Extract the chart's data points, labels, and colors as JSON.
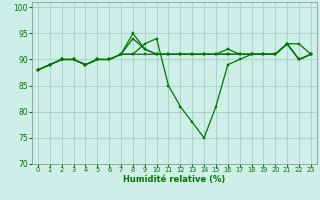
{
  "xlabel": "Humidité relative (%)",
  "background_color": "#ceeee8",
  "grid_color": "#aad4cc",
  "line_color": "#007700",
  "xlim": [
    -0.5,
    23.5
  ],
  "ylim": [
    70,
    101
  ],
  "yticks": [
    70,
    75,
    80,
    85,
    90,
    95,
    100
  ],
  "xticks": [
    0,
    1,
    2,
    3,
    4,
    5,
    6,
    7,
    8,
    9,
    10,
    11,
    12,
    13,
    14,
    15,
    16,
    17,
    18,
    19,
    20,
    21,
    22,
    23
  ],
  "series": [
    [
      88,
      89,
      90,
      90,
      89,
      90,
      90,
      91,
      95,
      92,
      91,
      91,
      91,
      91,
      91,
      91,
      92,
      91,
      91,
      91,
      91,
      93,
      93,
      91
    ],
    [
      88,
      89,
      90,
      90,
      89,
      90,
      90,
      91,
      91,
      93,
      94,
      85,
      81,
      78,
      75,
      81,
      89,
      90,
      91,
      91,
      91,
      93,
      90,
      91
    ],
    [
      88,
      89,
      90,
      90,
      89,
      90,
      90,
      91,
      94,
      92,
      91,
      91,
      91,
      91,
      91,
      91,
      91,
      91,
      91,
      91,
      91,
      93,
      90,
      91
    ],
    [
      88,
      89,
      90,
      90,
      89,
      90,
      90,
      91,
      91,
      91,
      91,
      91,
      91,
      91,
      91,
      91,
      91,
      91,
      91,
      91,
      91,
      93,
      90,
      91
    ]
  ]
}
